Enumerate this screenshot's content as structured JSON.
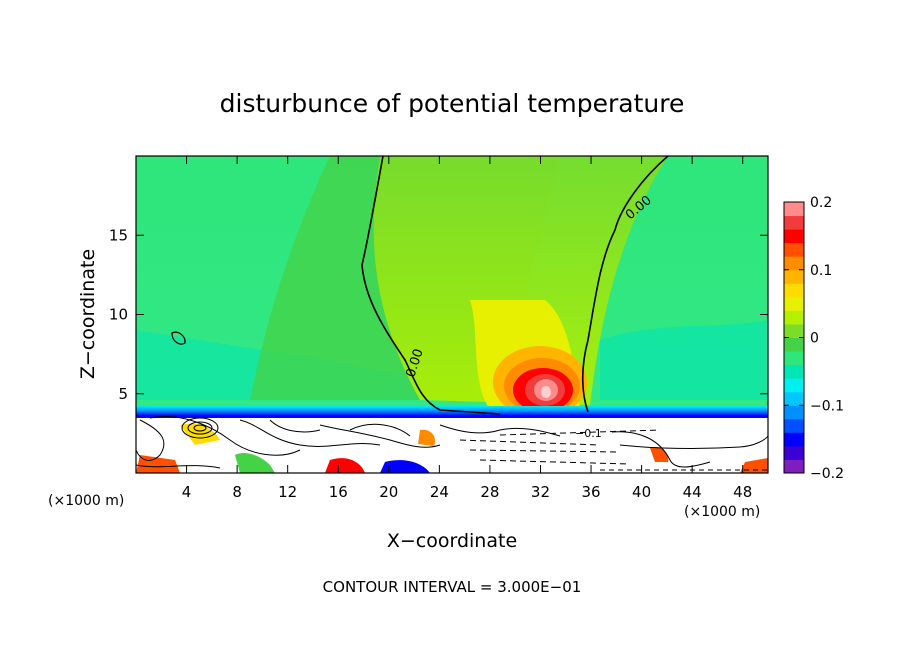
{
  "chart_data": {
    "type": "heatmap",
    "title": "disturbunce of potential temperature",
    "xlabel": "X−coordinate",
    "ylabel": "Z−coordinate",
    "x_unit_label": "(×1000 m)",
    "xlim": [
      0,
      50
    ],
    "ylim": [
      0,
      20
    ],
    "x_ticks": [
      4,
      8,
      12,
      16,
      20,
      24,
      28,
      32,
      36,
      40,
      44,
      48
    ],
    "y_ticks": [
      5,
      10,
      15
    ],
    "colorbar": {
      "range": [
        -0.2,
        0.2
      ],
      "tick_values": [
        0.2,
        0.1,
        0,
        -0.1,
        -0.2
      ],
      "tick_labels": [
        "0.2",
        "0.1",
        "0",
        "−0.1",
        "−0.2"
      ],
      "colors": [
        "#7e1ebe",
        "#3a00d4",
        "#0000ff",
        "#0050ff",
        "#0090ff",
        "#00c8ff",
        "#00f0f0",
        "#00e6b4",
        "#2ee67a",
        "#46d246",
        "#7ddc28",
        "#b4f000",
        "#e6f000",
        "#ffdc00",
        "#ffb400",
        "#ff8c00",
        "#ff5000",
        "#ff0000",
        "#f03c3c",
        "#ff8c8c"
      ]
    },
    "contour_labels": [
      "0.00",
      "0.00",
      "−0.1"
    ],
    "annotation": "CONTOUR INTERVAL = 3.000E−01",
    "contour_interval": 0.3,
    "field_features": [
      {
        "name": "background",
        "value": -0.01
      },
      {
        "name": "warm anomaly core",
        "x": 32.5,
        "z": 5,
        "value": 0.2
      },
      {
        "name": "warm plume",
        "x": 30,
        "z_range": [
          4,
          20
        ],
        "value": 0.05
      },
      {
        "name": "cold layer",
        "z": 3.7,
        "value": -0.12
      }
    ]
  }
}
